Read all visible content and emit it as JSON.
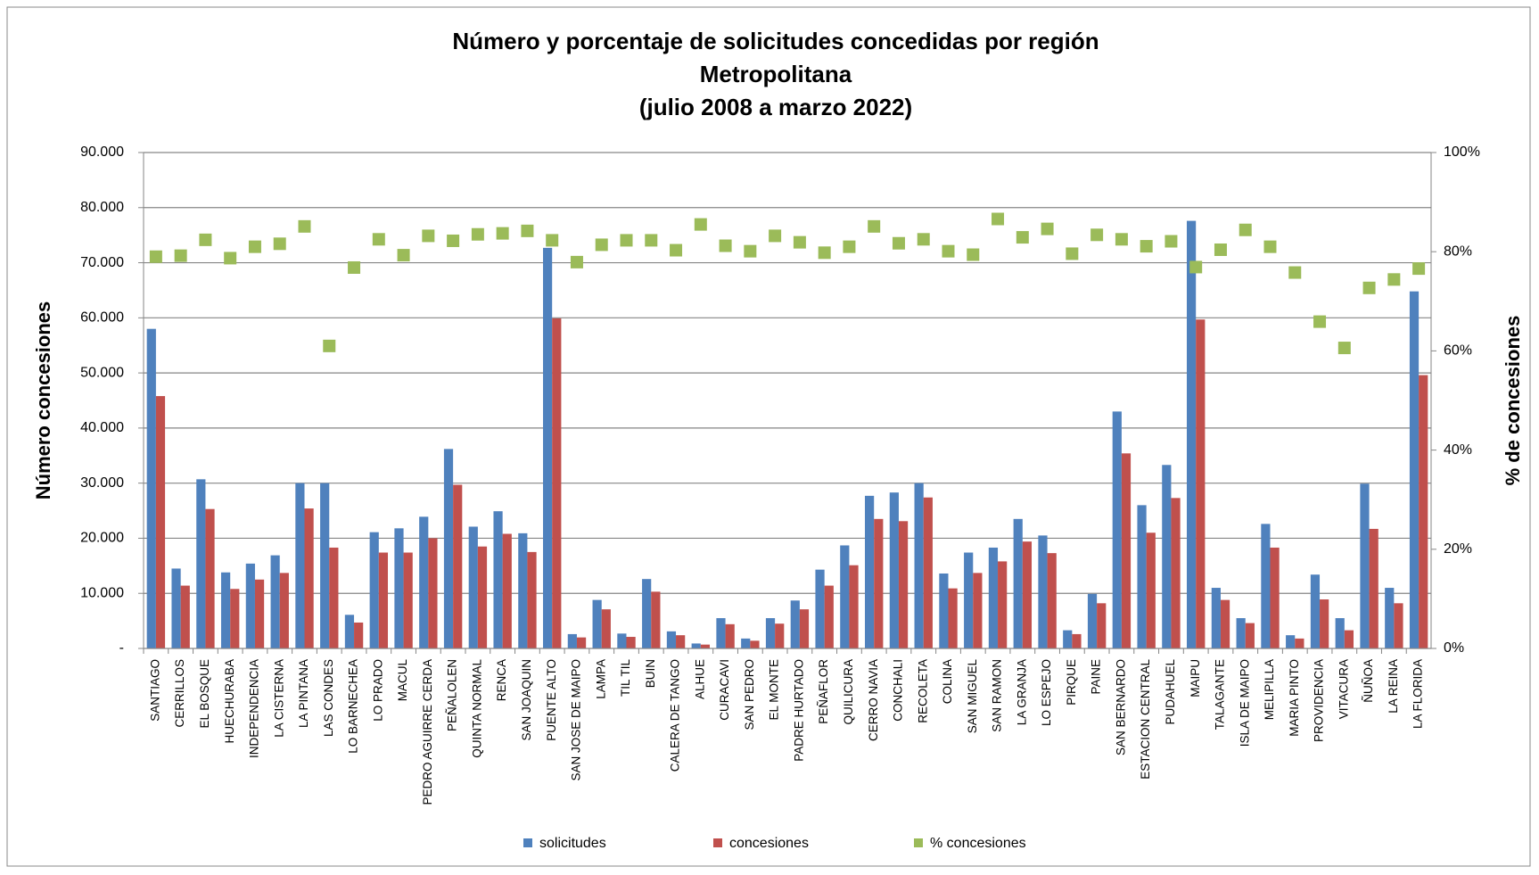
{
  "chart_data": {
    "type": "bar",
    "title": "Número y porcentaje de solicitudes concedidas por región",
    "subtitle": "Metropolitana",
    "period": "(julio 2008 a marzo 2022)",
    "y_label": "Número concesiones",
    "y2_label": "% de concesiones",
    "categories": [
      "SANTIAGO",
      "CERRILLOS",
      "EL BOSQUE",
      "HUECHURABA",
      "INDEPENDENCIA",
      "LA CISTERNA",
      "LA PINTANA",
      "LAS CONDES",
      "LO BARNECHEA",
      "LO PRADO",
      "MACUL",
      "PEDRO AGUIRRE CERDA",
      "PEÑALOLEN",
      "QUINTA NORMAL",
      "RENCA",
      "SAN JOAQUIN",
      "PUENTE ALTO",
      "SAN JOSE DE MAIPO",
      "LAMPA",
      "TIL TIL",
      "BUIN",
      "CALERA DE TANGO",
      "ALHUE",
      "CURACAVI",
      "SAN PEDRO",
      "EL MONTE",
      "PADRE HURTADO",
      "PEÑAFLOR",
      "QUILICURA",
      "CERRO NAVIA",
      "CONCHALI",
      "RECOLETA",
      "COLINA",
      "SAN MIGUEL",
      "SAN RAMON",
      "LA GRANJA",
      "LO ESPEJO",
      "PIRQUE",
      "PAINE",
      "SAN BERNARDO",
      "ESTACION CENTRAL",
      "PUDAHUEL",
      "MAIPU",
      "TALAGANTE",
      "ISLA DE MAIPO",
      "MELIPILLA",
      "MARIA PINTO",
      "PROVIDENCIA",
      "VITACURA",
      "ÑUÑOA",
      "LA REINA",
      "LA FLORIDA"
    ],
    "series": [
      {
        "name": "solicitudes",
        "color": "#4f81bd",
        "type": "bar",
        "values": [
          58000,
          14500,
          30700,
          13800,
          15400,
          16900,
          30000,
          30000,
          6100,
          21100,
          21800,
          23900,
          36200,
          22100,
          24900,
          20900,
          72700,
          2600,
          8800,
          2700,
          12600,
          3100,
          900,
          5500,
          1800,
          5500,
          8700,
          14300,
          18700,
          27700,
          28300,
          30000,
          13600,
          17400,
          18300,
          23500,
          20500,
          3300,
          9900,
          43000,
          26000,
          33300,
          77600,
          11000,
          5500,
          22600,
          2400,
          13400,
          5500,
          29900,
          11000,
          64800
        ]
      },
      {
        "name": "concesiones",
        "color": "#c0504d",
        "type": "bar",
        "values": [
          45800,
          11400,
          25300,
          10800,
          12500,
          13700,
          25400,
          18300,
          4700,
          17400,
          17400,
          20000,
          29700,
          18500,
          20800,
          17500,
          59900,
          2000,
          7100,
          2100,
          10300,
          2400,
          700,
          4400,
          1400,
          4500,
          7100,
          11400,
          15100,
          23500,
          23100,
          27400,
          10900,
          13700,
          15800,
          19400,
          17300,
          2600,
          8200,
          35400,
          21000,
          27300,
          59700,
          8800,
          4600,
          18300,
          1800,
          8900,
          3300,
          21700,
          8200,
          49600
        ]
      },
      {
        "name": "% concesiones",
        "color": "#9bbb59",
        "type": "scatter",
        "axis": "y2",
        "values": [
          79,
          79.2,
          82.4,
          78.7,
          81,
          81.6,
          85.1,
          61,
          76.8,
          82.5,
          79.3,
          83.2,
          82.2,
          83.5,
          83.7,
          84.2,
          82.3,
          77.9,
          81.4,
          82.3,
          82.3,
          80.3,
          85.5,
          81.2,
          80.1,
          83.2,
          81.9,
          79.8,
          81,
          85.1,
          81.7,
          82.5,
          80.1,
          79.4,
          86.6,
          82.9,
          84.6,
          79.6,
          83.4,
          82.5,
          81.1,
          82.1,
          76.9,
          80.4,
          84.4,
          81,
          75.8,
          65.9,
          60.6,
          72.7,
          74.4,
          76.6
        ]
      }
    ],
    "ylim": [
      0,
      90000
    ],
    "yticks": [
      {
        "value": 0,
        "label": "-"
      },
      {
        "value": 10000,
        "label": "10.000"
      },
      {
        "value": 20000,
        "label": "20.000"
      },
      {
        "value": 30000,
        "label": "30.000"
      },
      {
        "value": 40000,
        "label": "40.000"
      },
      {
        "value": 50000,
        "label": "50.000"
      },
      {
        "value": 60000,
        "label": "60.000"
      },
      {
        "value": 70000,
        "label": "70.000"
      },
      {
        "value": 80000,
        "label": "80.000"
      },
      {
        "value": 90000,
        "label": "90.000"
      }
    ],
    "y2lim": [
      0,
      100
    ],
    "y2ticks": [
      {
        "value": 0,
        "label": "0%"
      },
      {
        "value": 20,
        "label": "20%"
      },
      {
        "value": 40,
        "label": "40%"
      },
      {
        "value": 60,
        "label": "60%"
      },
      {
        "value": 80,
        "label": "80%"
      },
      {
        "value": 100,
        "label": "100%"
      }
    ],
    "grid": true,
    "legend": "bottom"
  }
}
